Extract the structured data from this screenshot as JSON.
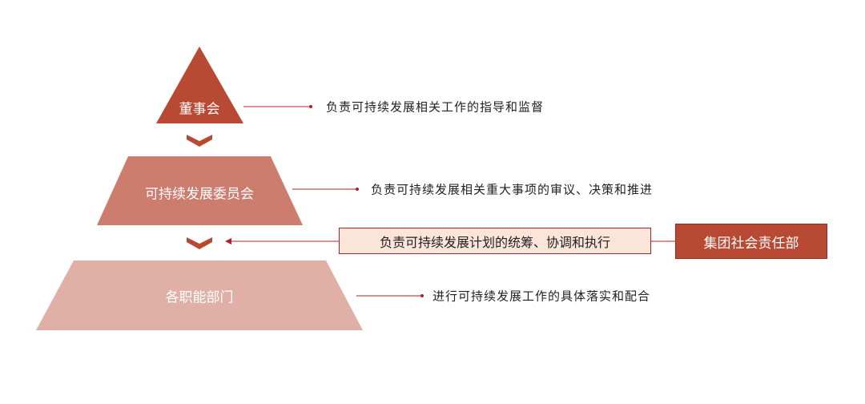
{
  "colors": {
    "level1": "#b84a33",
    "level2": "#cd7d6e",
    "level3": "#e0b0a6",
    "line": "#b0202a",
    "highlight_box_fill": "#fbe4d8",
    "dept_box": "#b84a33"
  },
  "levels": [
    {
      "label": "董事会",
      "description": "负责可持续发展相关工作的指导和监督"
    },
    {
      "label": "可持续发展委员会",
      "description": "负责可持续发展相关重大事项的审议、决策和推进"
    },
    {
      "label": "各职能部门",
      "description": "进行可持续发展工作的具体落实和配合"
    }
  ],
  "coordination": {
    "description": "负责可持续发展计划的统筹、协调和执行",
    "department": "集团社会责任部"
  }
}
